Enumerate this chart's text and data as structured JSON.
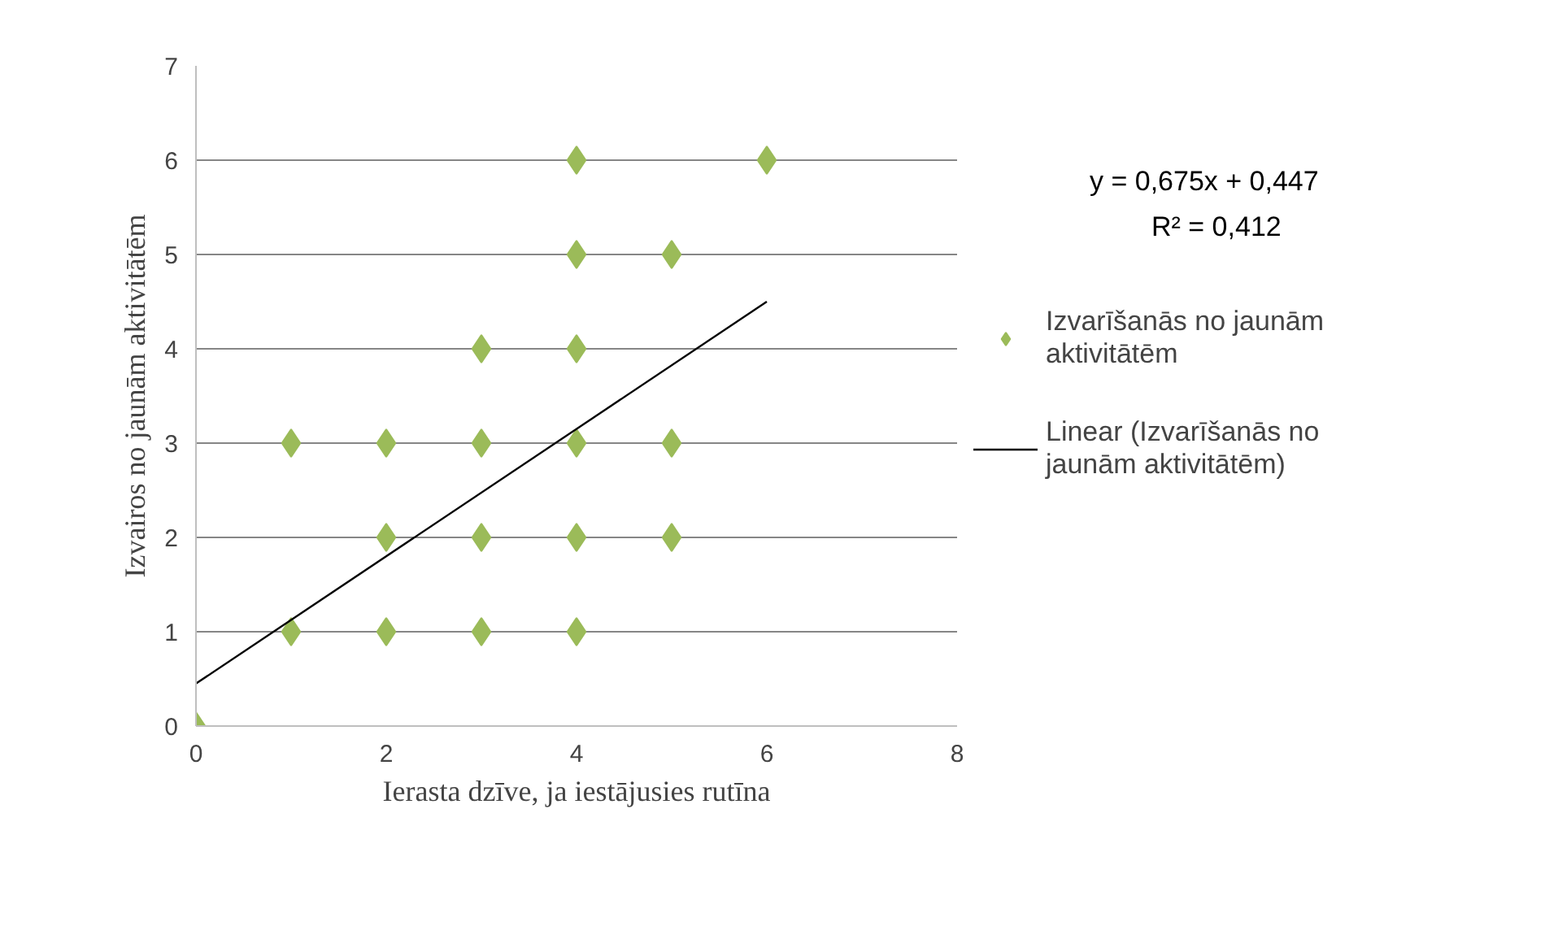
{
  "chart_data": {
    "type": "scatter",
    "xlabel": "Ierasta dzīve, ja iestājusies rutīna",
    "ylabel": "Izvairos no jaunām aktivitātēm",
    "xlim": [
      0,
      8
    ],
    "ylim": [
      0,
      7
    ],
    "xticks": [
      0,
      2,
      4,
      6,
      8
    ],
    "yticks": [
      0,
      1,
      2,
      3,
      4,
      5,
      6,
      7
    ],
    "grid": "y",
    "legend": "right",
    "series": [
      {
        "name": "Izvarīšanās no jaunām aktivitātēm",
        "marker": "diamond",
        "color": "#9bbb59",
        "x": [
          0,
          1,
          1,
          2,
          2,
          2,
          3,
          3,
          3,
          3,
          4,
          4,
          4,
          4,
          4,
          4,
          5,
          5,
          5,
          6
        ],
        "values": [
          0,
          1,
          3,
          1,
          2,
          3,
          1,
          2,
          3,
          4,
          1,
          2,
          3,
          4,
          5,
          6,
          2,
          3,
          5,
          6
        ]
      },
      {
        "name": "Linear (Izvarīšanās no jaunām aktivitātēm)",
        "type": "line",
        "color": "#000000",
        "line_style": "solid",
        "x": [
          0,
          6
        ],
        "values": [
          0.45,
          4.5
        ]
      }
    ],
    "annotations": [
      "y = 0,675x + 0,447",
      "R² = 0,412"
    ]
  }
}
